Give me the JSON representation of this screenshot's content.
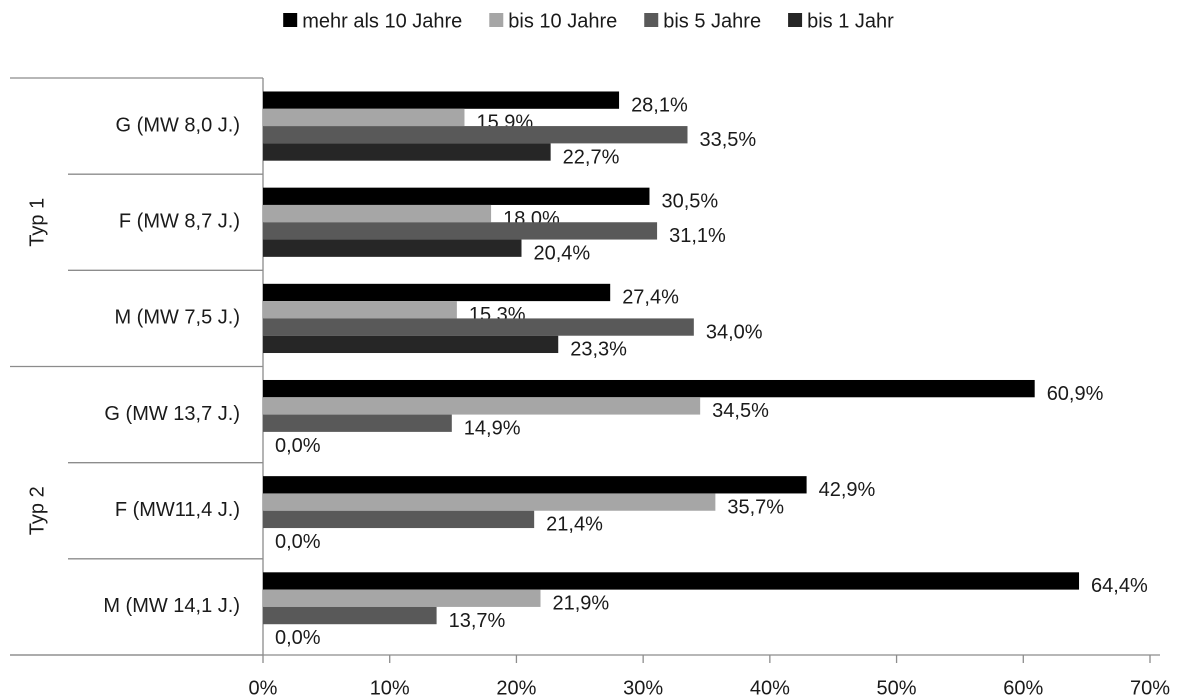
{
  "chart_data": {
    "type": "bar",
    "orientation": "horizontal",
    "legend": "top",
    "grid": false,
    "groups": [
      {
        "label": "Typ 1",
        "categories": [
          "G (MW 8,0 J.)",
          "F (MW 8,7 J.)",
          "M (MW 7,5 J.)"
        ]
      },
      {
        "label": "Typ 2",
        "categories": [
          "G (MW 13,7 J.)",
          "F (MW11,4 J.)",
          "M (MW 14,1 J.)"
        ]
      }
    ],
    "series": [
      {
        "name": "mehr als 10 Jahre",
        "color": "#000000",
        "values": [
          28.1,
          30.5,
          27.4,
          60.9,
          42.9,
          64.4
        ],
        "value_labels": [
          "28,1%",
          "30,5%",
          "27,4%",
          "60,9%",
          "42,9%",
          "64,4%"
        ]
      },
      {
        "name": "bis 10 Jahre",
        "color": "#a6a6a6",
        "values": [
          15.9,
          18.0,
          15.3,
          34.5,
          35.7,
          21.9
        ],
        "value_labels": [
          "15,9%",
          "18,0%",
          "15,3%",
          "34,5%",
          "35,7%",
          "21,9%"
        ]
      },
      {
        "name": "bis 5 Jahre",
        "color": "#595959",
        "values": [
          33.5,
          31.1,
          34.0,
          14.9,
          21.4,
          13.7
        ],
        "value_labels": [
          "33,5%",
          "31,1%",
          "34,0%",
          "14,9%",
          "21,4%",
          "13,7%"
        ]
      },
      {
        "name": "bis 1 Jahr",
        "color": "#262626",
        "values": [
          22.7,
          20.4,
          23.3,
          0,
          0,
          0
        ],
        "value_labels": [
          "22,7%",
          "20,4%",
          "23,3%",
          "0,0%",
          "0,0%",
          "0,0%"
        ]
      }
    ],
    "xlim": [
      0,
      70
    ],
    "xticks": [
      {
        "value": 0,
        "label": "0%"
      },
      {
        "value": 10,
        "label": "10%"
      },
      {
        "value": 20,
        "label": "20%"
      },
      {
        "value": 30,
        "label": "30%"
      },
      {
        "value": 40,
        "label": "40%"
      },
      {
        "value": 50,
        "label": "50%"
      },
      {
        "value": 60,
        "label": "60%"
      },
      {
        "value": 70,
        "label": "70%"
      }
    ]
  }
}
